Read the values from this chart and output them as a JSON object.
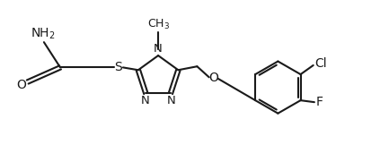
{
  "bg_color": "#ffffff",
  "line_color": "#1a1a1a",
  "line_width": 1.5,
  "font_size": 9.5,
  "xlim": [
    0,
    10.5
  ],
  "ylim": [
    0,
    4.2
  ]
}
